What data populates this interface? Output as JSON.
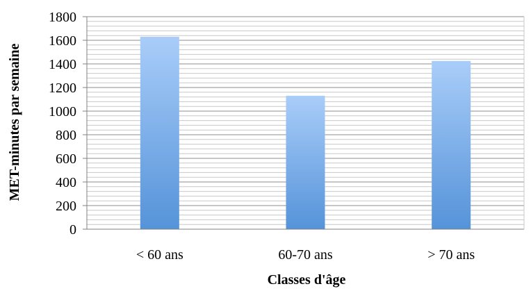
{
  "chart_data": {
    "type": "bar",
    "categories": [
      "< 60 ans",
      "60-70 ans",
      "> 70 ans"
    ],
    "values": [
      1630,
      1130,
      1425
    ],
    "title": "",
    "xlabel": "Classes d'âge",
    "ylabel": "MET-minutes par semaine",
    "ylim": [
      0,
      1800
    ],
    "yticks": [
      0,
      200,
      400,
      600,
      800,
      1000,
      1200,
      1400,
      1600,
      1800
    ],
    "grid": true,
    "legend": "none",
    "colors": {
      "bar_top": "#a9cdf9",
      "bar_bottom": "#5593d9",
      "grid_major": "#8c8c8c",
      "grid_minor": "#c8c8c8",
      "axis": "#808080"
    }
  }
}
